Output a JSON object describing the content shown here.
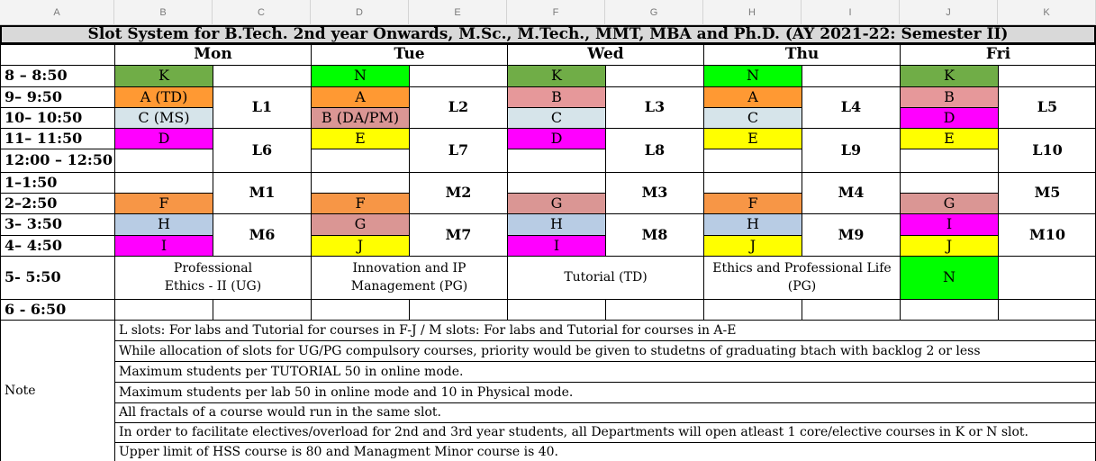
{
  "columns": [
    "A",
    "B",
    "C",
    "D",
    "E",
    "F",
    "G",
    "H",
    "I",
    "J",
    "K"
  ],
  "title": "Slot System for B.Tech. 2nd year Onwards, M.Sc., M.Tech., MMT, MBA and Ph.D. (AY 2021-22: Semester II)",
  "days": [
    "Mon",
    "Tue",
    "Wed",
    "Thu",
    "Fri"
  ],
  "times": [
    "8 – 8:50",
    "9– 9:50",
    "10– 10:50",
    "11– 11:50",
    "12:00 – 12:50",
    "1–1:50",
    "2–2:50",
    "3– 3:50",
    "4– 4:50",
    "5- 5:50",
    "6 - 6:50"
  ],
  "slots": {
    "mon": {
      "r8": "K",
      "r9": "A (TD)",
      "r10": "C (MS)",
      "r11": "D",
      "r2": "F",
      "r3": "H",
      "r4": "I",
      "lab_am": "L1",
      "lab_noon": "L6",
      "lab_m_top": "M1",
      "lab_m_bottom": "M6"
    },
    "tue": {
      "r8": "N",
      "r9": "A",
      "r10": "B (DA/PM)",
      "r11": "E",
      "r2": "F",
      "r3": "G",
      "r4": "J",
      "lab_am": "L2",
      "lab_noon": "L7",
      "lab_m_top": "M2",
      "lab_m_bottom": "M7"
    },
    "wed": {
      "r8": "K",
      "r9": "B",
      "r10": "C",
      "r11": "D",
      "r2": "G",
      "r3": "H",
      "r4": "I",
      "lab_am": "L3",
      "lab_noon": "L8",
      "lab_m_top": "M3",
      "lab_m_bottom": "M8"
    },
    "thu": {
      "r8": "N",
      "r9": "A",
      "r10": "C",
      "r11": "E",
      "r2": "F",
      "r3": "H",
      "r4": "J",
      "lab_am": "L4",
      "lab_noon": "L9",
      "lab_m_top": "M4",
      "lab_m_bottom": "M9"
    },
    "fri": {
      "r8": "K",
      "r9": "B",
      "r10": "D",
      "r11": "E",
      "r2": "G",
      "r3": "I",
      "r4": "J",
      "r5": "N",
      "lab_am": "L5",
      "lab_noon": "L10",
      "lab_m_top": "M5",
      "lab_m_bottom": "M10"
    }
  },
  "five_pm": {
    "mon": "Professional\nEthics - II (UG)",
    "tue": "Innovation and IP\nManagement (PG)",
    "wed": "Tutorial (TD)",
    "thu": "Ethics and Professional Life\n(PG)"
  },
  "note_label": "Note",
  "notes": [
    "L slots: For labs and Tutorial for courses in F-J   /   M slots: For labs and Tutorial for courses in A-E",
    "While  allocation of slots for UG/PG compulsory courses, priority would be given to studetns of graduating btach with backlog 2 or less",
    "Maximum students per TUTORIAL  50 in online mode.",
    "Maximum students per lab 50 in online mode and 10 in Physical mode.",
    "All fractals of a course would run in the same slot.",
    "In order to facilitate electives/overload for 2nd and 3rd year students, all Departments will open atleast 1 core/elective courses in K or N slot.",
    "Upper limit of HSS course is 80 and Managment Minor course is 40."
  ],
  "colors": {
    "K": "#70ad47",
    "N": "#00ff00",
    "A": "#ff9933",
    "B": "#e6989a",
    "C": "#d6e4ea",
    "D": "#ff00ff",
    "E": "#ffff00",
    "F": "#f79646",
    "G": "#da9694",
    "H": "#b8cce4",
    "I": "#ff00ff",
    "J": "#ffff00",
    "B_DA": "#da9694"
  }
}
